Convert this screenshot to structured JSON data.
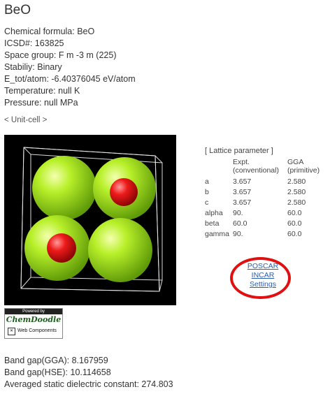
{
  "title": "BeO",
  "info": {
    "formula": "Chemical formula: BeO",
    "icsd": "ICSD#: 163825",
    "space_group": "Space group: F m -3 m (225)",
    "stability": "Stabiliy: Binary",
    "etot": "E_tot/atom: -6.40376045 eV/atom",
    "temperature": "Temperature: null K",
    "pressure": "Pressure: null MPa"
  },
  "unit_cell_link": "< Unit-cell >",
  "viewer": {
    "background": "#000000",
    "large_atom_color": "#a6e81a",
    "small_atom_color": "#e0141a"
  },
  "logo": {
    "top": "Powered by",
    "name": "ChemDoodle",
    "sub": "Web Components"
  },
  "lattice": {
    "caption": "[ Lattice parameter ]",
    "col1": "Expt. (conventional)",
    "col2": "GGA (primitive)",
    "rows": [
      {
        "p": "a",
        "expt": "3.657",
        "gga": "2.580"
      },
      {
        "p": "b",
        "expt": "3.657",
        "gga": "2.580"
      },
      {
        "p": "c",
        "expt": "3.657",
        "gga": "2.580"
      },
      {
        "p": "alpha",
        "expt": "90.",
        "gga": "60.0"
      },
      {
        "p": "beta",
        "expt": "60.0",
        "gga": "60.0"
      },
      {
        "p": "gamma",
        "expt": "90.",
        "gga": "60.0"
      }
    ]
  },
  "links": {
    "poscar": "POSCAR",
    "incar": "INCAR",
    "settings": "Settings"
  },
  "highlight_color": "#e01010",
  "band": {
    "gga": "Band gap(GGA): 8.167959",
    "hse": "Band gap(HSE): 10.114658",
    "dielectric": "Averaged static dielectric constant: 274.803"
  }
}
